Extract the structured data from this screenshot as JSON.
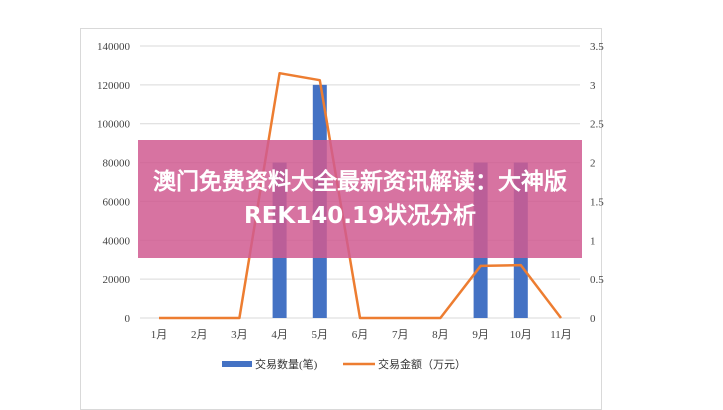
{
  "chart_data": {
    "type": "bar+line",
    "categories": [
      "1月",
      "2月",
      "3月",
      "4月",
      "5月",
      "6月",
      "7月",
      "8月",
      "9月",
      "10月",
      "11月"
    ],
    "series": [
      {
        "name": "交易数量(笔)",
        "type": "bar",
        "axis": "left",
        "color": "#4472c4",
        "values": [
          0,
          0,
          0,
          80000,
          120000,
          0,
          0,
          0,
          80000,
          80000,
          0
        ]
      },
      {
        "name": "交易金额（万元）",
        "type": "line",
        "axis": "right",
        "color": "#ed7d31",
        "values": [
          0,
          0,
          0,
          3.15,
          3.06,
          0,
          0,
          0,
          0.67,
          0.68,
          0
        ]
      }
    ],
    "y_left": {
      "ylim": [
        0,
        140000
      ],
      "ticks": [
        "0",
        "20000",
        "40000",
        "60000",
        "80000",
        "100000",
        "120000",
        "140000"
      ]
    },
    "y_right": {
      "ylim": [
        0,
        3.5
      ],
      "ticks": [
        "0",
        "0.5",
        "1",
        "1.5",
        "2",
        "2.5",
        "3",
        "3.5"
      ]
    },
    "grid": true,
    "legend": "bottom"
  },
  "banner": {
    "text": "澳门免费资料大全最新资讯解读：大神版REK140.19状况分析"
  }
}
